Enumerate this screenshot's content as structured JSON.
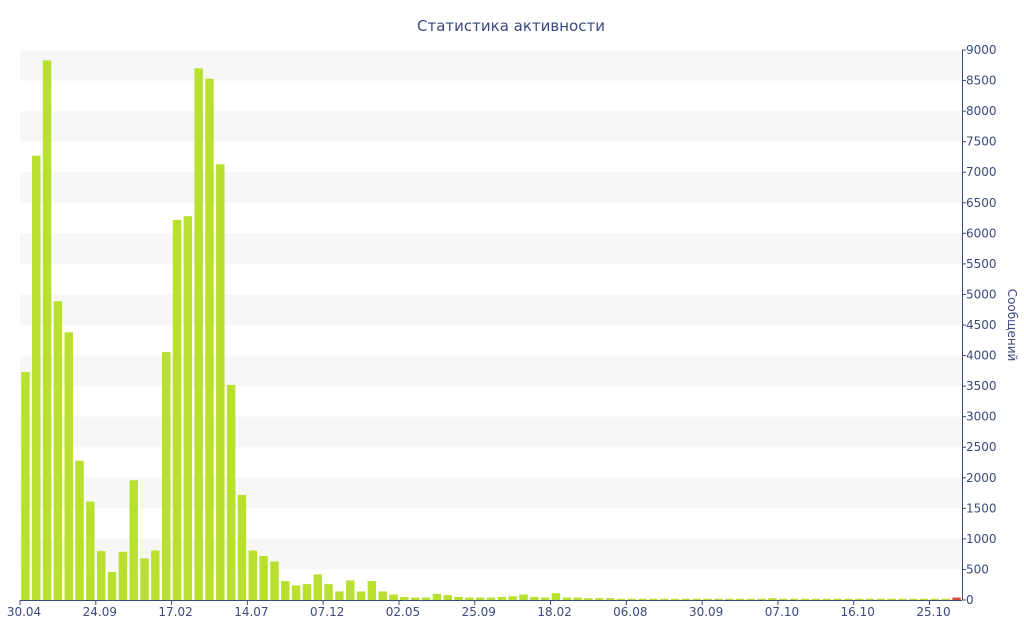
{
  "chart_data": {
    "type": "bar",
    "title": "Статистика активности",
    "ylabel": "Сообщений",
    "xlabel": "",
    "ylim": [
      0,
      9000
    ],
    "y_ticks": [
      0,
      500,
      1000,
      1500,
      2000,
      2500,
      3000,
      3500,
      4000,
      4500,
      5000,
      5500,
      6000,
      6500,
      7000,
      7500,
      8000,
      8500,
      9000
    ],
    "x_tick_labels": [
      {
        "index": 0,
        "label": "30.04"
      },
      {
        "index": 7,
        "label": "24.09"
      },
      {
        "index": 14,
        "label": "17.02"
      },
      {
        "index": 21,
        "label": "14.07"
      },
      {
        "index": 28,
        "label": "07.12"
      },
      {
        "index": 35,
        "label": "02.05"
      },
      {
        "index": 42,
        "label": "25.09"
      },
      {
        "index": 49,
        "label": "18.02"
      },
      {
        "index": 56,
        "label": "06.08"
      },
      {
        "index": 63,
        "label": "30.09"
      },
      {
        "index": 70,
        "label": "07.10"
      },
      {
        "index": 77,
        "label": "16.10"
      },
      {
        "index": 84,
        "label": "25.10"
      }
    ],
    "y_axis_position": "right",
    "grid": "alternating-bands",
    "legend": "none",
    "bar_color": "#b9e02e",
    "last_bar_color": "#e04a3a",
    "series": [
      {
        "values": [
          3730,
          7270,
          8830,
          4890,
          4380,
          2280,
          1610,
          800,
          460,
          790,
          1960,
          680,
          810,
          4060,
          6220,
          6280,
          8700,
          8530,
          7130,
          3520,
          1720,
          810,
          720,
          630,
          310,
          240,
          260,
          420,
          260,
          140,
          320,
          140,
          310,
          140,
          90,
          50,
          40,
          40,
          100,
          80,
          50,
          40,
          40,
          40,
          50,
          60,
          90,
          50,
          40,
          110,
          40,
          40,
          30,
          30,
          30,
          20,
          20,
          20,
          20,
          20,
          20,
          20,
          20,
          20,
          20,
          20,
          20,
          20,
          20,
          30,
          20,
          20,
          20,
          20,
          20,
          20,
          20,
          20,
          20,
          20,
          20,
          20,
          20,
          20,
          20,
          20,
          40
        ]
      }
    ]
  }
}
